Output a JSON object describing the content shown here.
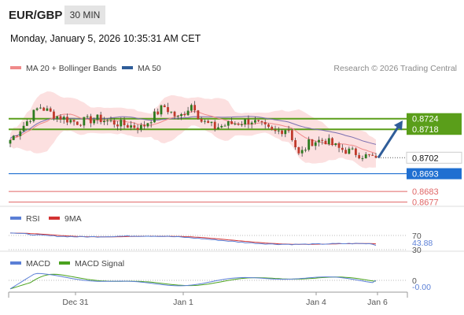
{
  "header": {
    "symbol": "EUR/GBP",
    "timeframe": "30 MIN",
    "datetime": "Monday, January 5, 2026 10:35:31 AM CET"
  },
  "legend": {
    "items": [
      {
        "label": "MA 20 + Bollinger Bands",
        "color": "#f08a8a"
      },
      {
        "label": "MA 50",
        "color": "#2f5d99"
      }
    ],
    "source": "Research © 2026 Trading Central"
  },
  "colors": {
    "resistance": "#5a9e1a",
    "support_blue": "#1f6fd1",
    "support_red": "#e06666",
    "candle_up": "#2d7a1f",
    "candle_down": "#c0392b",
    "band_fill": "#fbdada",
    "ma20": "#f08a8a",
    "ma50": "#7b6fb0",
    "arrow": "#2f5d99",
    "rsi": "#5b7fd6",
    "rsi_ma": "#d33333",
    "macd": "#5b7fd6",
    "macd_signal": "#4aa21e"
  },
  "chart_data": [
    {
      "type": "candlestick",
      "x": [
        "Dec 31",
        "Jan 1",
        "Jan 4",
        "Jan 6"
      ],
      "ylim": [
        0.86755,
        0.87465
      ],
      "levels": [
        {
          "value": 0.8724,
          "label": "0.8724",
          "kind": "resistance"
        },
        {
          "value": 0.8718,
          "label": "0.8718",
          "kind": "resistance"
        },
        {
          "value": 0.8702,
          "label": "0.8702",
          "kind": "current"
        },
        {
          "value": 0.8693,
          "label": "0.8693",
          "kind": "support-blue"
        },
        {
          "value": 0.8683,
          "label": "0.8683",
          "kind": "support-red"
        },
        {
          "value": 0.8677,
          "label": "0.8677",
          "kind": "support-red"
        }
      ],
      "projection": {
        "from": 0.8702,
        "to": 0.8723
      },
      "anchors": [
        {
          "t": 0,
          "v": 0.8712
        },
        {
          "t": 0.04,
          "v": 0.8721
        },
        {
          "t": 0.08,
          "v": 0.8731
        },
        {
          "t": 0.12,
          "v": 0.8726
        },
        {
          "t": 0.18,
          "v": 0.8722
        },
        {
          "t": 0.24,
          "v": 0.8724
        },
        {
          "t": 0.3,
          "v": 0.8721
        },
        {
          "t": 0.36,
          "v": 0.8719
        },
        {
          "t": 0.42,
          "v": 0.8731
        },
        {
          "t": 0.46,
          "v": 0.8724
        },
        {
          "t": 0.5,
          "v": 0.8733
        },
        {
          "t": 0.52,
          "v": 0.8723
        },
        {
          "t": 0.56,
          "v": 0.8719
        },
        {
          "t": 0.6,
          "v": 0.8721
        },
        {
          "t": 0.66,
          "v": 0.8723
        },
        {
          "t": 0.72,
          "v": 0.8716
        },
        {
          "t": 0.76,
          "v": 0.8719
        },
        {
          "t": 0.79,
          "v": 0.8703
        },
        {
          "t": 0.82,
          "v": 0.8711
        },
        {
          "t": 0.86,
          "v": 0.8712
        },
        {
          "t": 0.9,
          "v": 0.8707
        },
        {
          "t": 0.94,
          "v": 0.8705
        },
        {
          "t": 0.97,
          "v": 0.8703
        },
        {
          "t": 1,
          "v": 0.8702
        }
      ]
    },
    {
      "type": "line",
      "name": "RSI",
      "legend": [
        {
          "label": "RSI",
          "color": "#5b7fd6"
        },
        {
          "label": "9MA",
          "color": "#d33333"
        }
      ],
      "ylim": [
        20,
        80
      ],
      "ticks": [
        "70",
        "30"
      ],
      "current": "43.88",
      "current_value": 43.88
    },
    {
      "type": "line",
      "name": "MACD",
      "legend": [
        {
          "label": "MACD",
          "color": "#5b7fd6"
        },
        {
          "label": "MACD Signal",
          "color": "#4aa21e"
        }
      ],
      "zero_tick": "0",
      "current": "-0.00"
    }
  ]
}
